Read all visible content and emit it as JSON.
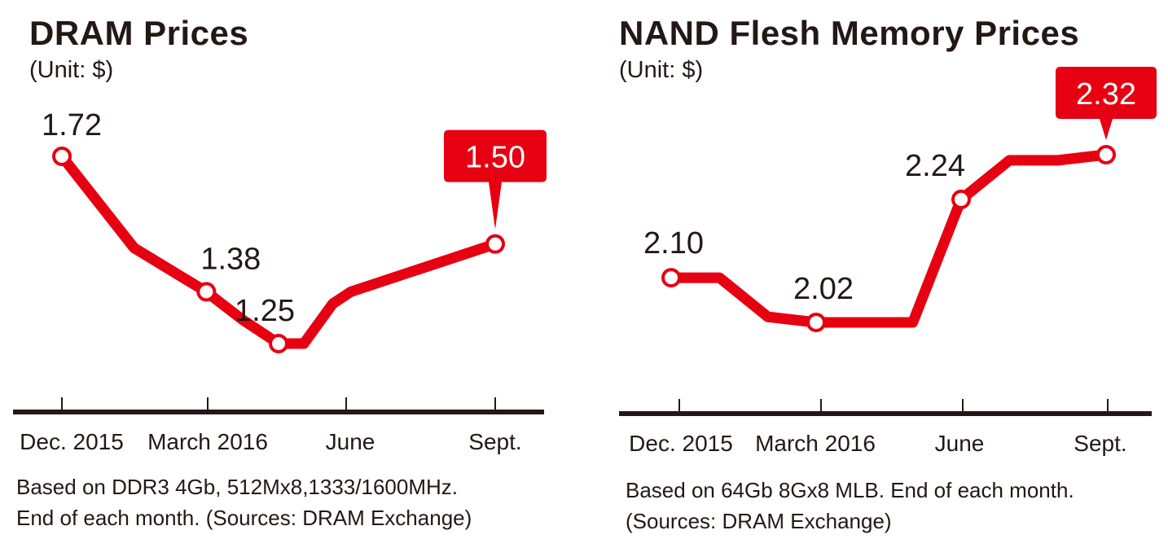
{
  "chart_data": [
    {
      "type": "line",
      "title": "DRAM Prices",
      "subtitle": "(Unit: $)",
      "xlabel": "",
      "ylabel": "",
      "categories": [
        "Dec. 2015",
        "March 2016",
        "June",
        "Sept."
      ],
      "series": [
        {
          "x": [
            0,
            1,
            2,
            2.5,
            3,
            3.35,
            3.75,
            4,
            5,
            6
          ],
          "values": [
            1.72,
            1.49,
            1.38,
            1.31,
            1.25,
            1.25,
            1.35,
            1.38,
            1.44,
            1.5
          ]
        }
      ],
      "labeled_points": [
        {
          "index": 0,
          "value": "1.72"
        },
        {
          "index": 2,
          "value": "1.38"
        },
        {
          "index": 4,
          "value": "1.25"
        },
        {
          "index": 9,
          "value": "1.50",
          "highlight": true
        }
      ],
      "ylim": [
        1.0,
        1.9
      ],
      "grid": false,
      "note": [
        "Based on DDR3 4Gb, 512Mx8,1333/1600MHz.",
        "End of each month. (Sources: DRAM Exchange)"
      ],
      "colors": {
        "line": "#e60012",
        "text": "#231815",
        "axis": "#231815",
        "callout": "#e60012"
      }
    },
    {
      "type": "line",
      "title": "NAND Flesh Memory Prices",
      "subtitle": "(Unit: $)",
      "xlabel": "",
      "ylabel": "",
      "categories": [
        "Dec. 2015",
        "March 2016",
        "June",
        "Sept."
      ],
      "series": [
        {
          "x": [
            0,
            1,
            2,
            3,
            4,
            5,
            6,
            7,
            8,
            9
          ],
          "values": [
            2.1,
            2.1,
            2.03,
            2.02,
            2.02,
            2.02,
            2.24,
            2.31,
            2.31,
            2.32
          ]
        }
      ],
      "labeled_points": [
        {
          "index": 0,
          "value": "2.10"
        },
        {
          "index": 3,
          "value": "2.02"
        },
        {
          "index": 6,
          "value": "2.24"
        },
        {
          "index": 9,
          "value": "2.32",
          "highlight": true
        }
      ],
      "ylim": [
        1.9,
        2.4
      ],
      "grid": false,
      "note": [
        "Based on 64Gb 8Gx8 MLB. End of each month.",
        "(Sources: DRAM Exchange)"
      ],
      "colors": {
        "line": "#e60012",
        "text": "#231815",
        "axis": "#231815",
        "callout": "#e60012"
      }
    }
  ]
}
